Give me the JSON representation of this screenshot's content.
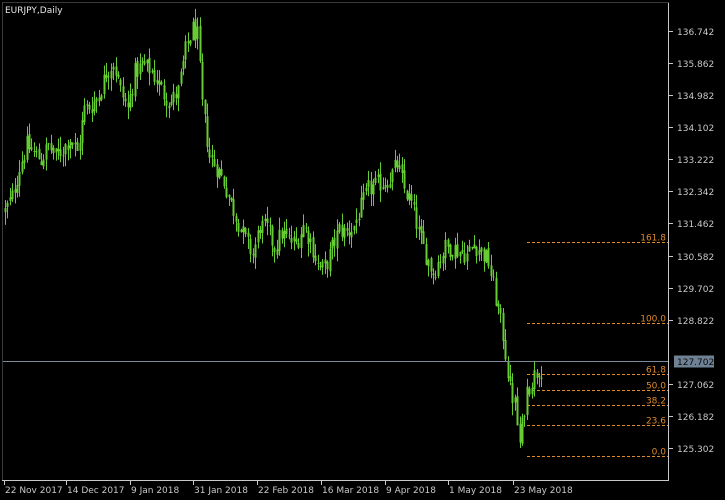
{
  "window": {
    "title": "EURJPY,Daily"
  },
  "chart_data": {
    "type": "candlestick",
    "symbol": "EURJPY",
    "timeframe": "Daily",
    "y_ticks": [
      "136.742",
      "135.862",
      "134.982",
      "134.102",
      "133.222",
      "132.342",
      "131.462",
      "130.582",
      "129.702",
      "128.822",
      "127.062",
      "126.182",
      "125.302"
    ],
    "y_tick_values": [
      136.742,
      135.862,
      134.982,
      134.102,
      133.222,
      132.342,
      131.462,
      130.582,
      129.702,
      128.822,
      127.062,
      126.182,
      125.302
    ],
    "x_ticks": [
      "22 Nov 2017",
      "14 Dec 2017",
      "9 Jan 2018",
      "31 Jan 2018",
      "22 Feb 2018",
      "16 Mar 2018",
      "9 Apr 2018",
      "1 May 2018",
      "23 May 2018"
    ],
    "ylim": [
      124.6,
      137.6
    ],
    "current_price": {
      "label": "127.702",
      "value": 127.702
    },
    "fibonacci_levels": [
      {
        "label": "161.8",
        "price": 130.96
      },
      {
        "label": "100.0",
        "price": 128.72
      },
      {
        "label": "61.8",
        "price": 127.32
      },
      {
        "label": "50.0",
        "price": 126.9
      },
      {
        "label": "38.2",
        "price": 126.47
      },
      {
        "label": "23.6",
        "price": 125.94
      },
      {
        "label": "0.0",
        "price": 125.08
      }
    ],
    "close_path": [
      [
        0,
        131.8
      ],
      [
        3,
        132.2
      ],
      [
        6,
        133.0
      ],
      [
        9,
        133.6
      ],
      [
        12,
        133.4
      ],
      [
        15,
        133.2
      ],
      [
        18,
        133.6
      ],
      [
        21,
        133.3
      ],
      [
        24,
        133.5
      ],
      [
        27,
        133.8
      ],
      [
        30,
        133.4
      ],
      [
        33,
        134.6
      ],
      [
        36,
        134.7
      ],
      [
        39,
        135.0
      ],
      [
        42,
        135.6
      ],
      [
        45,
        135.9
      ],
      [
        48,
        135.1
      ],
      [
        51,
        134.6
      ],
      [
        54,
        135.6
      ],
      [
        57,
        135.8
      ],
      [
        60,
        135.7
      ],
      [
        63,
        135.4
      ],
      [
        66,
        135.0
      ],
      [
        69,
        134.8
      ],
      [
        72,
        135.1
      ],
      [
        75,
        136.2
      ],
      [
        78,
        136.8
      ],
      [
        80,
        136.6
      ],
      [
        82,
        134.7
      ],
      [
        85,
        133.3
      ],
      [
        88,
        133.0
      ],
      [
        91,
        132.6
      ],
      [
        94,
        132.0
      ],
      [
        97,
        131.5
      ],
      [
        100,
        131.0
      ],
      [
        103,
        130.6
      ],
      [
        106,
        131.4
      ],
      [
        109,
        131.3
      ],
      [
        112,
        130.8
      ],
      [
        115,
        131.2
      ],
      [
        118,
        131.0
      ],
      [
        121,
        130.9
      ],
      [
        124,
        131.4
      ],
      [
        127,
        131.0
      ],
      [
        130,
        130.3
      ],
      [
        133,
        130.2
      ],
      [
        136,
        130.8
      ],
      [
        139,
        131.3
      ],
      [
        142,
        131.2
      ],
      [
        145,
        131.4
      ],
      [
        148,
        131.9
      ],
      [
        151,
        132.4
      ],
      [
        154,
        132.5
      ],
      [
        157,
        132.6
      ],
      [
        160,
        132.7
      ],
      [
        163,
        133.1
      ],
      [
        166,
        132.4
      ],
      [
        169,
        132.0
      ],
      [
        172,
        131.2
      ],
      [
        175,
        130.6
      ],
      [
        178,
        130.1
      ],
      [
        180,
        130.4
      ],
      [
        183,
        130.8
      ],
      [
        186,
        130.8
      ],
      [
        189,
        130.7
      ],
      [
        192,
        130.6
      ],
      [
        195,
        130.9
      ],
      [
        198,
        130.7
      ],
      [
        201,
        130.4
      ],
      [
        204,
        129.4
      ],
      [
        207,
        128.4
      ],
      [
        210,
        126.9
      ],
      [
        212,
        126.5
      ],
      [
        214,
        125.4
      ],
      [
        217,
        126.9
      ],
      [
        220,
        127.3
      ],
      [
        222,
        127.5
      ]
    ]
  },
  "colors": {
    "background": "#000000",
    "candle": "#66cc33",
    "axis_text": "#c8c8c8",
    "fib": "#e08a2a",
    "price_line": "#7a8a99",
    "price_tag_bg": "#6f8195",
    "price_tag_text": "#0a0a0a",
    "axis_line": "#c8c8c8"
  }
}
